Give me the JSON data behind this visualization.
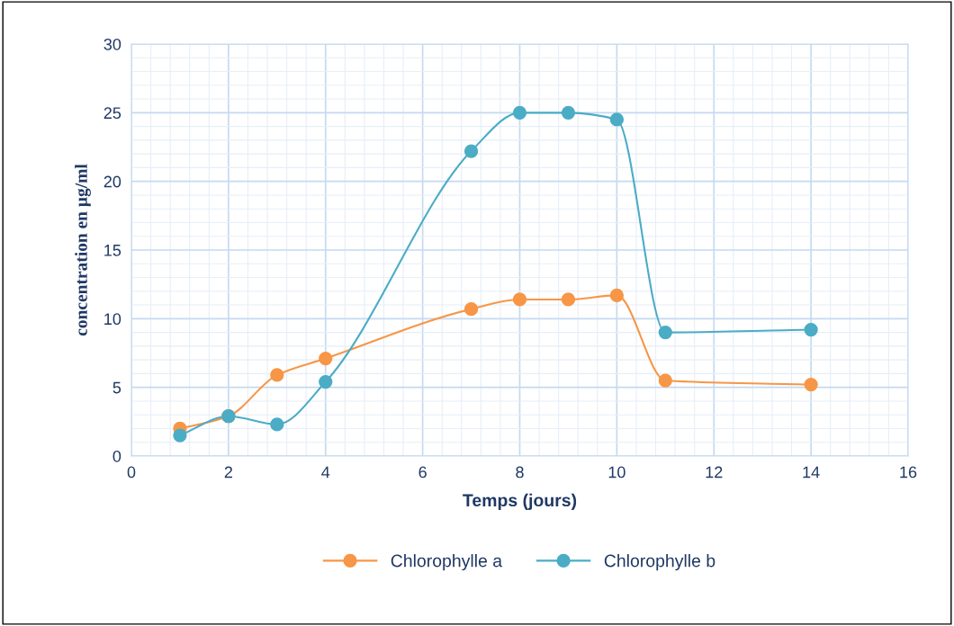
{
  "chart_data": {
    "type": "line",
    "xlabel": "Temps (jours)",
    "ylabel": "concentration en µg/ml",
    "x": [
      1,
      2,
      3,
      4,
      7,
      8,
      9,
      10,
      11,
      14
    ],
    "series": [
      {
        "name": "Chlorophylle a",
        "color": "#f79646",
        "values": [
          2.0,
          2.9,
          5.9,
          7.1,
          10.7,
          11.4,
          11.4,
          11.7,
          5.5,
          5.2
        ]
      },
      {
        "name": "Chlorophylle b",
        "color": "#4bacc6",
        "values": [
          1.5,
          2.9,
          2.3,
          5.4,
          22.2,
          25.0,
          25.0,
          24.5,
          9.0,
          9.2
        ]
      }
    ],
    "xlim": [
      0,
      16
    ],
    "xticks": [
      0,
      2,
      4,
      6,
      8,
      10,
      12,
      14,
      16
    ],
    "ylim": [
      0,
      30
    ],
    "yticks": [
      0,
      5,
      10,
      15,
      20,
      25,
      30
    ],
    "grid": true,
    "legend": "bottom",
    "marker": "circle",
    "line_style": "solid"
  }
}
